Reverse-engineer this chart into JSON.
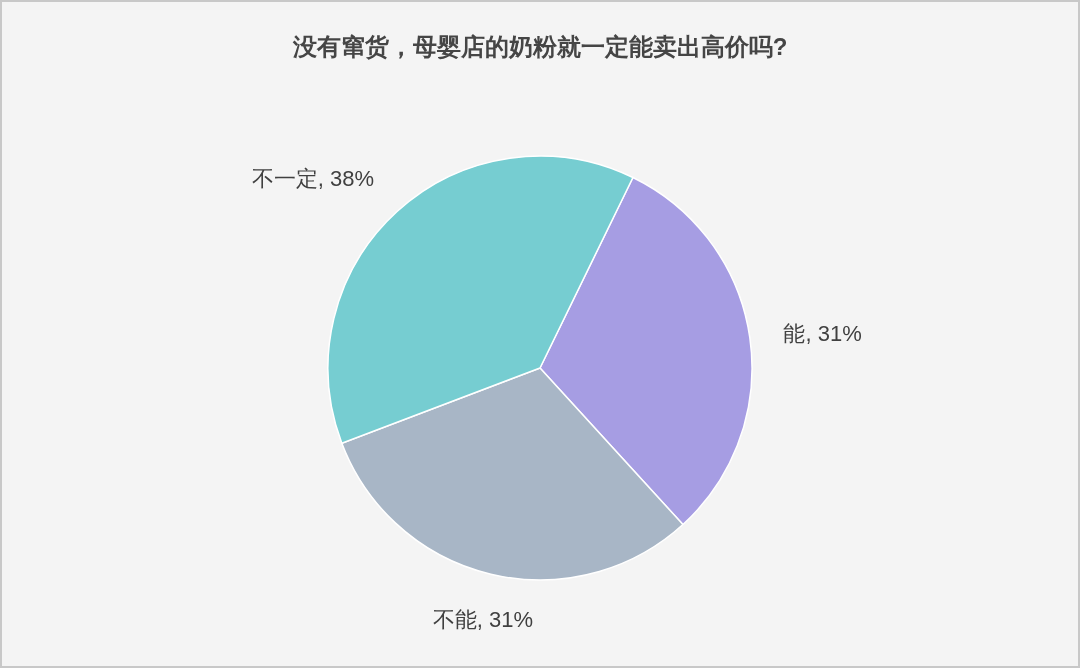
{
  "chart_data": {
    "type": "pie",
    "title": "没有窜货，母婴店的奶粉就一定能卖出高价吗?",
    "categories": [
      "能",
      "不能",
      "不一定"
    ],
    "values": [
      31,
      31,
      38
    ],
    "colors": [
      "#a69de3",
      "#a8b6c6",
      "#76cdd1"
    ],
    "value_labels": [
      "31%",
      "31%",
      "38%"
    ]
  }
}
